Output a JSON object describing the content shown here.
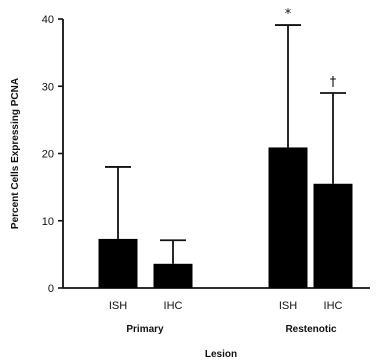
{
  "chart_data": {
    "type": "bar",
    "title": "",
    "xlabel": "Lesion",
    "ylabel": "Percent Cells Expressing PCNA",
    "ylim": [
      0,
      40
    ],
    "yticks": [
      0,
      10,
      20,
      30,
      40
    ],
    "groups": [
      {
        "name": "Primary",
        "bars": [
          {
            "label": "ISH",
            "value": 7.3,
            "error": 10.7,
            "annotation": ""
          },
          {
            "label": "IHC",
            "value": 3.6,
            "error": 3.5,
            "annotation": ""
          }
        ]
      },
      {
        "name": "Restenotic",
        "bars": [
          {
            "label": "ISH",
            "value": 20.9,
            "error": 18.2,
            "annotation": "*"
          },
          {
            "label": "IHC",
            "value": 15.5,
            "error": 13.5,
            "annotation": "†"
          }
        ]
      }
    ],
    "bar_color": "#000000",
    "grid": false,
    "legend": "none"
  }
}
